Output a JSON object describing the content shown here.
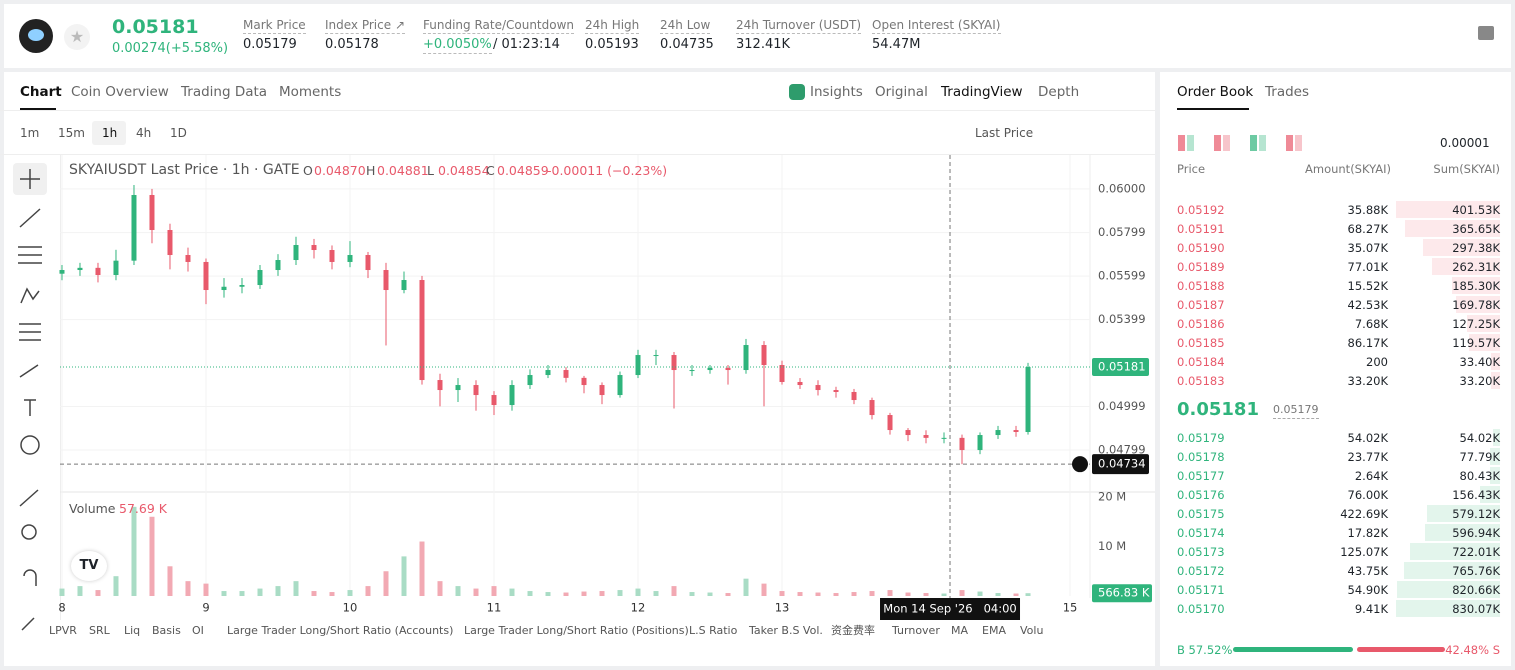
{
  "header": {
    "price": "0.05181",
    "change": "0.00274(+5.58%)",
    "stats": [
      {
        "label": "Mark Price",
        "value": "0.05179"
      },
      {
        "label": "Index Price ↗",
        "value": "0.05178"
      },
      {
        "label": "Funding Rate/Countdown",
        "value": "+0.0050%",
        "extra": "/ 01:23:14"
      },
      {
        "label": "24h High",
        "value": "0.05193"
      },
      {
        "label": "24h Low",
        "value": "0.04735"
      },
      {
        "label": "24h Turnover (USDT)",
        "value": "312.41K"
      },
      {
        "label": "Open Interest (SKYAI)",
        "value": "54.47M"
      }
    ]
  },
  "tabs": [
    "Chart",
    "Coin Overview",
    "Trading Data",
    "Moments"
  ],
  "view_tabs": [
    "Insights",
    "Original",
    "TradingView",
    "Depth"
  ],
  "intervals": [
    "1m",
    "15m",
    "1h",
    "4h",
    "1D"
  ],
  "price_type": "Last Price",
  "legend": {
    "symbol": "SKYAIUSDT Last Price · 1h · GATE",
    "items": [
      {
        "key": "O",
        "value": "0.04870"
      },
      {
        "key": "H",
        "value": "0.04881"
      },
      {
        "key": "L",
        "value": "0.04854"
      },
      {
        "key": "C",
        "value": "0.04859"
      }
    ],
    "change": "-0.00011 (−0.23%)"
  },
  "volume_legend": {
    "label": "Volume",
    "value": "57.69 K"
  },
  "indicators": [
    "LPVR",
    "SRL",
    "Liq",
    "Basis",
    "OI",
    "Large Trader Long/Short Ratio (Accounts)",
    "Large Trader Long/Short Ratio (Positions)",
    "L.S Ratio",
    "Taker B.S Vol.",
    "资金费率",
    "Turnover",
    "MA",
    "EMA",
    "Volu"
  ],
  "chart_data": {
    "type": "candlestick",
    "up_color": "#2fb47c",
    "down_color": "#e8596b",
    "volume_up_color": "#a9dcc5",
    "volume_down_color": "#f2a9b3",
    "x": [
      0,
      3,
      6,
      9,
      12,
      15,
      18,
      21,
      24,
      27,
      30,
      33,
      36,
      39,
      42,
      45,
      48,
      51,
      54,
      57,
      60,
      63,
      66,
      69,
      72,
      75,
      78,
      81,
      84,
      87,
      90,
      93,
      96,
      99,
      102,
      105,
      108,
      111,
      114,
      117,
      120,
      123,
      126,
      129,
      132,
      135,
      138,
      141,
      144,
      147,
      150,
      153,
      156,
      159,
      161
    ],
    "open": [
      0.0561,
      0.05627,
      0.05637,
      0.05604,
      0.0567,
      0.05972,
      0.05811,
      0.05696,
      0.05664,
      0.05535,
      0.0555,
      0.05558,
      0.05627,
      0.05673,
      0.05742,
      0.05719,
      0.05664,
      0.05696,
      0.05627,
      0.05535,
      0.05581,
      0.05121,
      0.05075,
      0.05098,
      0.05052,
      0.05006,
      0.05098,
      0.05144,
      0.05167,
      0.05131,
      0.05098,
      0.05052,
      0.05144,
      0.05236,
      0.05236,
      0.05167,
      0.05167,
      0.05177,
      0.05167,
      0.05282,
      0.0519,
      0.05112,
      0.05098,
      0.05075,
      0.05066,
      0.05029,
      0.0496,
      0.04891,
      0.04868,
      0.04855,
      0.04855,
      0.04799,
      0.04868,
      0.04891,
      0.04882
    ],
    "high": [
      0.0565,
      0.0566,
      0.0566,
      0.0572,
      0.06018,
      0.06,
      0.0584,
      0.0573,
      0.0568,
      0.0559,
      0.0559,
      0.0565,
      0.057,
      0.0578,
      0.0577,
      0.0574,
      0.0576,
      0.0571,
      0.0566,
      0.0562,
      0.056,
      0.0515,
      0.0513,
      0.0512,
      0.0507,
      0.0512,
      0.0517,
      0.0519,
      0.0518,
      0.0514,
      0.0511,
      0.0516,
      0.0526,
      0.0526,
      0.0525,
      0.0519,
      0.0519,
      0.0519,
      0.0531,
      0.053,
      0.0521,
      0.0513,
      0.0512,
      0.0509,
      0.0508,
      0.0504,
      0.0497,
      0.049,
      0.0489,
      0.0488,
      0.0487,
      0.0488,
      0.0491,
      0.0491,
      0.052
    ],
    "low": [
      0.0558,
      0.056,
      0.0557,
      0.0558,
      0.0565,
      0.0575,
      0.0563,
      0.0562,
      0.0547,
      0.055,
      0.0552,
      0.0554,
      0.056,
      0.0565,
      0.0568,
      0.0563,
      0.0564,
      0.0559,
      0.0528,
      0.0552,
      0.051,
      0.05,
      0.0502,
      0.0498,
      0.0496,
      0.0498,
      0.0508,
      0.0513,
      0.0511,
      0.0506,
      0.0501,
      0.0504,
      0.0513,
      0.0519,
      0.0499,
      0.0514,
      0.0515,
      0.051,
      0.0515,
      0.05,
      0.051,
      0.0508,
      0.0505,
      0.0504,
      0.0501,
      0.0494,
      0.0487,
      0.0484,
      0.0483,
      0.0483,
      0.04734,
      0.0478,
      0.0485,
      0.0486,
      0.0487
    ],
    "close": [
      0.05627,
      0.05637,
      0.05604,
      0.0567,
      0.05972,
      0.05811,
      0.05696,
      0.05664,
      0.05535,
      0.0555,
      0.05558,
      0.05627,
      0.05673,
      0.05742,
      0.05719,
      0.05664,
      0.05696,
      0.05627,
      0.05535,
      0.05581,
      0.05121,
      0.05075,
      0.05098,
      0.05052,
      0.05006,
      0.05098,
      0.05144,
      0.05167,
      0.05131,
      0.05098,
      0.05052,
      0.05144,
      0.05236,
      0.05236,
      0.05167,
      0.05167,
      0.05177,
      0.05167,
      0.05282,
      0.0519,
      0.05112,
      0.05098,
      0.05075,
      0.05066,
      0.05029,
      0.0496,
      0.04891,
      0.04868,
      0.04855,
      0.04855,
      0.04799,
      0.04868,
      0.04891,
      0.04882,
      0.05181
    ],
    "volume": [
      1500000,
      2000000,
      1200000,
      4000000,
      18000000,
      16000000,
      6000000,
      3000000,
      2500000,
      1000000,
      1000000,
      1500000,
      2000000,
      3000000,
      1000000,
      800000,
      1200000,
      2000000,
      5000000,
      8000000,
      11000000,
      3000000,
      2000000,
      1500000,
      2000000,
      1500000,
      1000000,
      800000,
      700000,
      900000,
      1000000,
      1200000,
      1500000,
      1000000,
      2000000,
      800000,
      700000,
      600000,
      3500000,
      2500000,
      1000000,
      800000,
      700000,
      600000,
      800000,
      1000000,
      1200000,
      700000,
      600000,
      500000,
      1200000,
      900000,
      600000,
      500000,
      566830
    ],
    "xlim": [
      -0.33,
      171.33
    ],
    "xticks": [
      {
        "value": 0,
        "label": "8"
      },
      {
        "value": 24,
        "label": "9"
      },
      {
        "value": 48,
        "label": "10"
      },
      {
        "value": 72,
        "label": "11"
      },
      {
        "value": 96,
        "label": "12"
      },
      {
        "value": 120,
        "label": "13"
      },
      {
        "value": 168,
        "label": "15"
      }
    ],
    "ylim": [
      0.04606,
      0.06156
    ],
    "yticks": [
      {
        "value": 0.06,
        "label": "0.06000"
      },
      0.05799,
      0.05599,
      0.05399,
      0.04999,
      0.04799
    ],
    "vlim": [
      0,
      21000000
    ],
    "vticks": [
      {
        "value": 20000000,
        "label": "20 M"
      },
      {
        "value": 10000000,
        "label": "10 M"
      }
    ],
    "last_price": 0.05181,
    "last_volume": {
      "value": 566830,
      "label": "566.83 K"
    },
    "crosshair": {
      "x": 148,
      "x_label": "Mon 14 Sep '26   04:00",
      "price": 0.04734
    },
    "grid": true
  },
  "order_book": {
    "tabs": [
      "Order Book",
      "Trades"
    ],
    "precision": "0.00001",
    "columns": [
      "Price",
      "Amount(SKYAI)",
      "Sum(SKYAI)"
    ],
    "asks": [
      {
        "price": "0.05192",
        "amount": {
          "value": 35880,
          "label": "35.88K"
        },
        "sum": {
          "value": 401530,
          "label": "401.53K"
        }
      },
      {
        "price": "0.05191",
        "amount": {
          "value": 68270,
          "label": "68.27K"
        },
        "sum": {
          "value": 365650,
          "label": "365.65K"
        }
      },
      {
        "price": "0.05190",
        "amount": {
          "value": 35070,
          "label": "35.07K"
        },
        "sum": {
          "value": 297380,
          "label": "297.38K"
        }
      },
      {
        "price": "0.05189",
        "amount": {
          "value": 77010,
          "label": "77.01K"
        },
        "sum": {
          "value": 262310,
          "label": "262.31K"
        }
      },
      {
        "price": "0.05188",
        "amount": {
          "value": 15520,
          "label": "15.52K"
        },
        "sum": {
          "value": 185300,
          "label": "185.30K"
        }
      },
      {
        "price": "0.05187",
        "amount": {
          "value": 42530,
          "label": "42.53K"
        },
        "sum": {
          "value": 169780,
          "label": "169.78K"
        }
      },
      {
        "price": "0.05186",
        "amount": {
          "value": 7680,
          "label": "7.68K"
        },
        "sum": {
          "value": 127250,
          "label": "127.25K"
        }
      },
      {
        "price": "0.05185",
        "amount": {
          "value": 86170,
          "label": "86.17K"
        },
        "sum": {
          "value": 119570,
          "label": "119.57K"
        }
      },
      {
        "price": "0.05184",
        "amount": 200,
        "sum": {
          "value": 33400,
          "label": "33.40K"
        }
      },
      {
        "price": "0.05183",
        "amount": {
          "value": 33200,
          "label": "33.20K"
        },
        "sum": {
          "value": 33200,
          "label": "33.20K"
        }
      }
    ],
    "last": "0.05181",
    "mark": "0.05179",
    "bids": [
      {
        "price": "0.05179",
        "amount": {
          "value": 54020,
          "label": "54.02K"
        },
        "sum": {
          "value": 54020,
          "label": "54.02K"
        }
      },
      {
        "price": "0.05178",
        "amount": {
          "value": 23770,
          "label": "23.77K"
        },
        "sum": {
          "value": 77790,
          "label": "77.79K"
        }
      },
      {
        "price": "0.05177",
        "amount": {
          "value": 2640,
          "label": "2.64K"
        },
        "sum": {
          "value": 80430,
          "label": "80.43K"
        }
      },
      {
        "price": "0.05176",
        "amount": {
          "value": 76000,
          "label": "76.00K"
        },
        "sum": {
          "value": 156430,
          "label": "156.43K"
        }
      },
      {
        "price": "0.05175",
        "amount": {
          "value": 422690,
          "label": "422.69K"
        },
        "sum": {
          "value": 579120,
          "label": "579.12K"
        }
      },
      {
        "price": "0.05174",
        "amount": {
          "value": 17820,
          "label": "17.82K"
        },
        "sum": {
          "value": 596940,
          "label": "596.94K"
        }
      },
      {
        "price": "0.05173",
        "amount": {
          "value": 125070,
          "label": "125.07K"
        },
        "sum": {
          "value": 722010,
          "label": "722.01K"
        }
      },
      {
        "price": "0.05172",
        "amount": {
          "value": 43750,
          "label": "43.75K"
        },
        "sum": {
          "value": 765760,
          "label": "765.76K"
        }
      },
      {
        "price": "0.05171",
        "amount": {
          "value": 54900,
          "label": "54.90K"
        },
        "sum": {
          "value": 820660,
          "label": "820.66K"
        }
      },
      {
        "price": "0.05170",
        "amount": {
          "value": 9410,
          "label": "9.41K"
        },
        "sum": {
          "value": 830070,
          "label": "830.07K"
        }
      }
    ],
    "buy_ratio": {
      "value": 57.52,
      "label": "B 57.52%"
    },
    "sell_ratio": {
      "value": 42.48,
      "label": "42.48% S"
    }
  }
}
